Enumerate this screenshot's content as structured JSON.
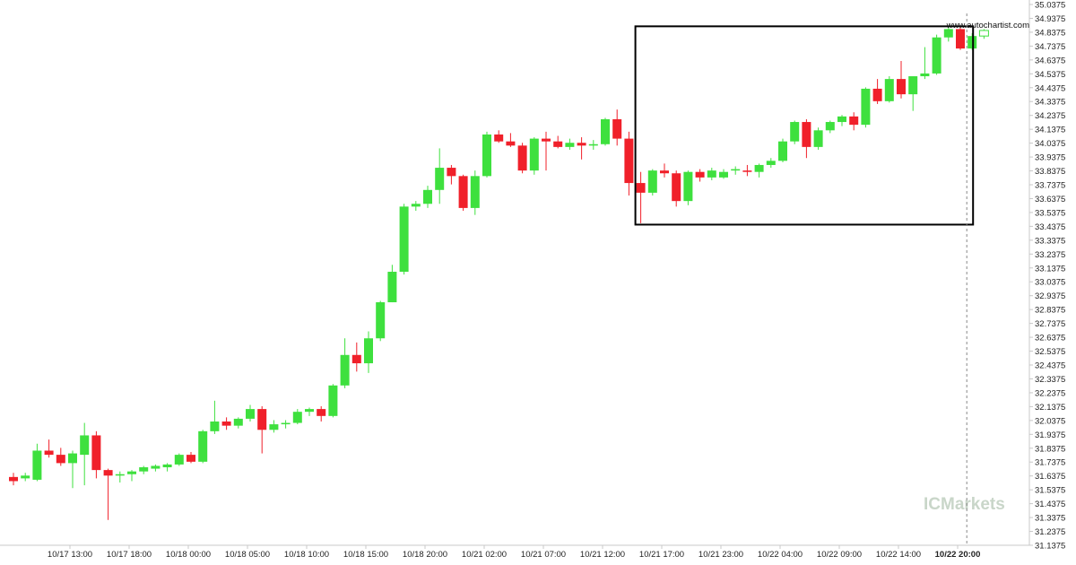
{
  "watermark": "www.autochartist.com",
  "brand": "ICMarkets",
  "colors": {
    "up": "#3ee03e",
    "down": "#f0202a",
    "axis": "#c8c8c8",
    "box": "#000000",
    "vline": "#888888"
  },
  "chart_data": {
    "type": "candlestick",
    "title": "",
    "xlabel": "",
    "ylabel": "",
    "ylim": [
      31.1375,
      35.0375
    ],
    "y_ticks": [
      "35.0375",
      "34.9375",
      "34.8375",
      "34.7375",
      "34.6375",
      "34.5375",
      "34.4375",
      "34.3375",
      "34.2375",
      "34.1375",
      "34.0375",
      "33.9375",
      "33.8375",
      "33.7375",
      "33.6375",
      "33.5375",
      "33.4375",
      "33.3375",
      "33.2375",
      "33.1375",
      "33.0375",
      "32.9375",
      "32.8375",
      "32.7375",
      "32.6375",
      "32.5375",
      "32.4375",
      "32.3375",
      "32.2375",
      "32.1375",
      "32.0375",
      "31.9375",
      "31.8375",
      "31.7375",
      "31.6375",
      "31.5375",
      "31.4375",
      "31.3375",
      "31.2375",
      "31.1375"
    ],
    "x_ticks": [
      {
        "label": "10/17 13:00",
        "index": 5
      },
      {
        "label": "10/17 18:00",
        "index": 10
      },
      {
        "label": "10/18 00:00",
        "index": 15
      },
      {
        "label": "10/18 05:00",
        "index": 20
      },
      {
        "label": "10/18 10:00",
        "index": 25
      },
      {
        "label": "10/18 15:00",
        "index": 30
      },
      {
        "label": "10/18 20:00",
        "index": 35
      },
      {
        "label": "10/21 02:00",
        "index": 40
      },
      {
        "label": "10/21 07:00",
        "index": 45
      },
      {
        "label": "10/21 12:00",
        "index": 50
      },
      {
        "label": "10/21 17:00",
        "index": 55
      },
      {
        "label": "10/21 23:00",
        "index": 60
      },
      {
        "label": "10/22 04:00",
        "index": 65
      },
      {
        "label": "10/22 09:00",
        "index": 70
      },
      {
        "label": "10/22 14:00",
        "index": 75
      },
      {
        "label": "10/22 20:00",
        "index": 80,
        "bold": true
      }
    ],
    "candles": [
      [
        31.63,
        31.66,
        31.57,
        31.6
      ],
      [
        31.62,
        31.66,
        31.6,
        31.64
      ],
      [
        31.61,
        31.87,
        31.6,
        31.82
      ],
      [
        31.82,
        31.9,
        31.77,
        31.79
      ],
      [
        31.79,
        31.84,
        31.71,
        31.73
      ],
      [
        31.73,
        31.82,
        31.55,
        31.8
      ],
      [
        31.79,
        32.02,
        31.57,
        31.93
      ],
      [
        31.93,
        31.96,
        31.62,
        31.68
      ],
      [
        31.68,
        31.69,
        31.32,
        31.64
      ],
      [
        31.64,
        31.67,
        31.59,
        31.65
      ],
      [
        31.65,
        31.68,
        31.6,
        31.67
      ],
      [
        31.67,
        31.71,
        31.65,
        31.7
      ],
      [
        31.69,
        31.72,
        31.67,
        31.71
      ],
      [
        31.7,
        31.73,
        31.67,
        31.72
      ],
      [
        31.72,
        31.8,
        31.71,
        31.79
      ],
      [
        31.79,
        31.81,
        31.73,
        31.74
      ],
      [
        31.74,
        31.97,
        31.73,
        31.96
      ],
      [
        31.96,
        32.18,
        31.94,
        32.03
      ],
      [
        32.03,
        32.06,
        31.97,
        32.0
      ],
      [
        32.0,
        32.06,
        31.98,
        32.05
      ],
      [
        32.05,
        32.15,
        32.03,
        32.12
      ],
      [
        32.12,
        32.14,
        31.8,
        31.97
      ],
      [
        31.97,
        32.04,
        31.95,
        32.01
      ],
      [
        32.01,
        32.04,
        31.98,
        32.02
      ],
      [
        32.02,
        32.12,
        32.01,
        32.1
      ],
      [
        32.1,
        32.13,
        32.07,
        32.12
      ],
      [
        32.12,
        32.14,
        32.03,
        32.07
      ],
      [
        32.07,
        32.3,
        32.06,
        32.29
      ],
      [
        32.29,
        32.63,
        32.27,
        32.51
      ],
      [
        32.51,
        32.6,
        32.39,
        32.45
      ],
      [
        32.45,
        32.68,
        32.38,
        32.63
      ],
      [
        32.63,
        32.9,
        32.61,
        32.89
      ],
      [
        32.89,
        33.16,
        32.89,
        33.11
      ],
      [
        33.11,
        33.6,
        33.09,
        33.58
      ],
      [
        33.58,
        33.62,
        33.55,
        33.6
      ],
      [
        33.6,
        33.73,
        33.57,
        33.7
      ],
      [
        33.7,
        34.0,
        33.6,
        33.86
      ],
      [
        33.86,
        33.88,
        33.74,
        33.8
      ],
      [
        33.8,
        33.81,
        33.55,
        33.57
      ],
      [
        33.57,
        33.84,
        33.52,
        33.8
      ],
      [
        33.8,
        34.12,
        33.79,
        34.1
      ],
      [
        34.1,
        34.13,
        34.04,
        34.05
      ],
      [
        34.05,
        34.11,
        34.01,
        34.02
      ],
      [
        34.02,
        34.04,
        33.82,
        33.84
      ],
      [
        33.84,
        34.08,
        33.81,
        34.07
      ],
      [
        34.07,
        34.12,
        33.84,
        34.05
      ],
      [
        34.05,
        34.09,
        34.0,
        34.01
      ],
      [
        34.01,
        34.07,
        33.99,
        34.04
      ],
      [
        34.04,
        34.08,
        33.92,
        34.02
      ],
      [
        34.02,
        34.06,
        33.99,
        34.03
      ],
      [
        34.03,
        34.22,
        34.02,
        34.21
      ],
      [
        34.21,
        34.28,
        34.02,
        34.07
      ],
      [
        34.07,
        34.12,
        33.66,
        33.75
      ],
      [
        33.75,
        33.83,
        33.46,
        33.68
      ],
      [
        33.68,
        33.85,
        33.66,
        33.84
      ],
      [
        33.84,
        33.89,
        33.79,
        33.82
      ],
      [
        33.82,
        33.84,
        33.58,
        33.62
      ],
      [
        33.62,
        33.84,
        33.59,
        33.83
      ],
      [
        33.83,
        33.85,
        33.76,
        33.79
      ],
      [
        33.79,
        33.86,
        33.77,
        33.84
      ],
      [
        33.79,
        33.85,
        33.78,
        33.83
      ],
      [
        33.84,
        33.87,
        33.81,
        33.85
      ],
      [
        33.84,
        33.88,
        33.8,
        33.83
      ],
      [
        33.83,
        33.89,
        33.79,
        33.88
      ],
      [
        33.88,
        33.93,
        33.86,
        33.91
      ],
      [
        33.91,
        34.07,
        33.9,
        34.05
      ],
      [
        34.05,
        34.2,
        34.03,
        34.19
      ],
      [
        34.19,
        34.21,
        33.93,
        34.01
      ],
      [
        34.01,
        34.15,
        33.99,
        34.13
      ],
      [
        34.13,
        34.2,
        34.11,
        34.19
      ],
      [
        34.19,
        34.24,
        34.16,
        34.23
      ],
      [
        34.23,
        34.26,
        34.13,
        34.17
      ],
      [
        34.17,
        34.44,
        34.15,
        34.43
      ],
      [
        34.43,
        34.5,
        34.32,
        34.34
      ],
      [
        34.34,
        34.52,
        34.33,
        34.5
      ],
      [
        34.5,
        34.63,
        34.36,
        34.39
      ],
      [
        34.39,
        34.52,
        34.27,
        34.52
      ],
      [
        34.52,
        34.73,
        34.5,
        34.54
      ],
      [
        34.54,
        34.82,
        34.53,
        34.8
      ],
      [
        34.8,
        34.88,
        34.77,
        34.86
      ],
      [
        34.86,
        34.88,
        34.71,
        34.72
      ],
      [
        34.72,
        34.83,
        34.71,
        34.81
      ],
      [
        34.81,
        34.86,
        34.79,
        34.85
      ]
    ],
    "pattern_box": {
      "start_index": 53,
      "end_index": 81,
      "high": 34.88,
      "low": 33.45
    },
    "current_time_index": 81
  }
}
